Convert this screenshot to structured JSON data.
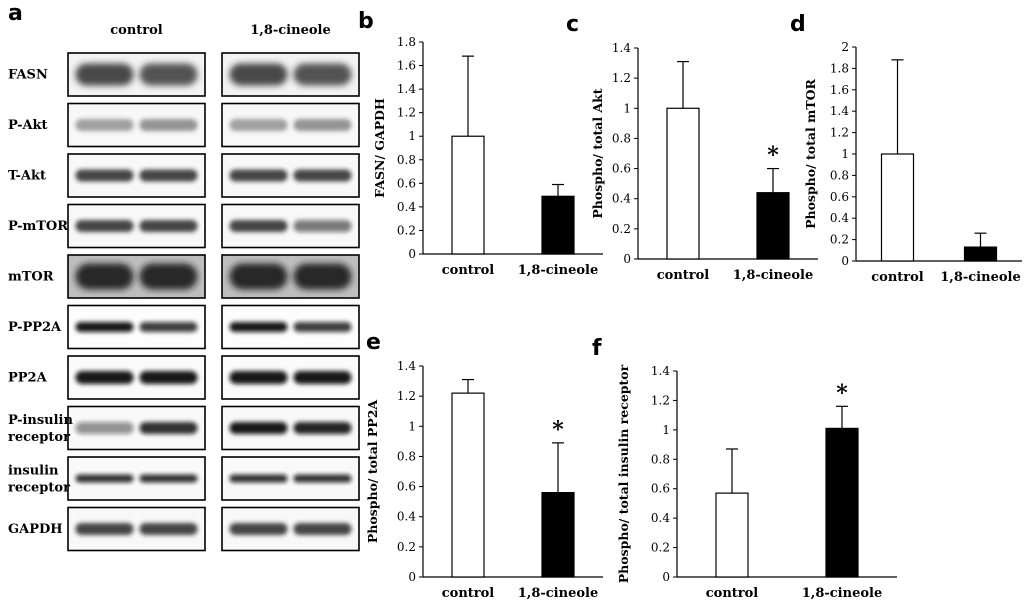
{
  "blot": {
    "letter": "a",
    "groups": [
      "control",
      "1,8-cineole"
    ],
    "rows": [
      {
        "label": "FASN",
        "style": "thick"
      },
      {
        "label": "P-Akt",
        "style": "faint"
      },
      {
        "label": "T-Akt",
        "style": "medium"
      },
      {
        "label": "P-mTOR",
        "style": "medium-var"
      },
      {
        "label": "mTOR",
        "style": "dark"
      },
      {
        "label": "P-PP2A",
        "style": "sharp"
      },
      {
        "label": "PP2A",
        "style": "sharp-thick"
      },
      {
        "label": [
          "P-insulin",
          "receptor"
        ],
        "style": "insulin-p"
      },
      {
        "label": [
          "insulin",
          "receptor"
        ],
        "style": "thin"
      },
      {
        "label": "GAPDH",
        "style": "medium"
      }
    ]
  },
  "chart_data": [
    {
      "id": "b",
      "letter": "b",
      "type": "bar",
      "categories": [
        "control",
        "1,8-cineole"
      ],
      "values": [
        1.0,
        0.49
      ],
      "errors": [
        0.68,
        0.1
      ],
      "ylabel": "FASN/ GAPDH",
      "ylim": [
        0,
        1.8
      ],
      "yticks": [
        0,
        0.2,
        0.4,
        0.6,
        0.8,
        1,
        1.2,
        1.4,
        1.6,
        1.8
      ],
      "fills": [
        "#ffffff",
        "#000000"
      ],
      "significance": [
        "",
        ""
      ]
    },
    {
      "id": "c",
      "letter": "c",
      "type": "bar",
      "categories": [
        "control",
        "1,8-cineole"
      ],
      "values": [
        1.0,
        0.44
      ],
      "errors": [
        0.31,
        0.16
      ],
      "ylabel": "Phospho/ total Akt",
      "ylim": [
        0,
        1.4
      ],
      "yticks": [
        0,
        0.2,
        0.4,
        0.6,
        0.8,
        1,
        1.2,
        1.4
      ],
      "fills": [
        "#ffffff",
        "#000000"
      ],
      "significance": [
        "",
        "*"
      ]
    },
    {
      "id": "d",
      "letter": "d",
      "type": "bar",
      "categories": [
        "control",
        "1,8-cineole"
      ],
      "values": [
        1.0,
        0.13
      ],
      "errors": [
        0.88,
        0.13
      ],
      "ylabel": "Phospho/ total mTOR",
      "ylim": [
        0,
        2
      ],
      "yticks": [
        0,
        0.2,
        0.4,
        0.6,
        0.8,
        1,
        1.2,
        1.4,
        1.6,
        1.8,
        2
      ],
      "fills": [
        "#ffffff",
        "#000000"
      ],
      "significance": [
        "",
        ""
      ]
    },
    {
      "id": "e",
      "letter": "e",
      "type": "bar",
      "categories": [
        "control",
        "1,8-cineole"
      ],
      "values": [
        1.22,
        0.56
      ],
      "errors": [
        0.09,
        0.33
      ],
      "ylabel": "Phospho/ total PP2A",
      "ylim": [
        0,
        1.4
      ],
      "yticks": [
        0,
        0.2,
        0.4,
        0.6,
        0.8,
        1,
        1.2,
        1.4
      ],
      "fills": [
        "#ffffff",
        "#000000"
      ],
      "significance": [
        "",
        "*"
      ]
    },
    {
      "id": "f",
      "letter": "f",
      "type": "bar",
      "categories": [
        "control",
        "1,8-cineole"
      ],
      "values": [
        0.57,
        1.01
      ],
      "errors": [
        0.3,
        0.15
      ],
      "ylabel": "Phospho/ total insulin receptor",
      "ylim": [
        0,
        1.4
      ],
      "yticks": [
        0,
        0.2,
        0.4,
        0.6,
        0.8,
        1,
        1.2,
        1.4
      ],
      "fills": [
        "#ffffff",
        "#000000"
      ],
      "significance": [
        "",
        "*"
      ]
    }
  ]
}
